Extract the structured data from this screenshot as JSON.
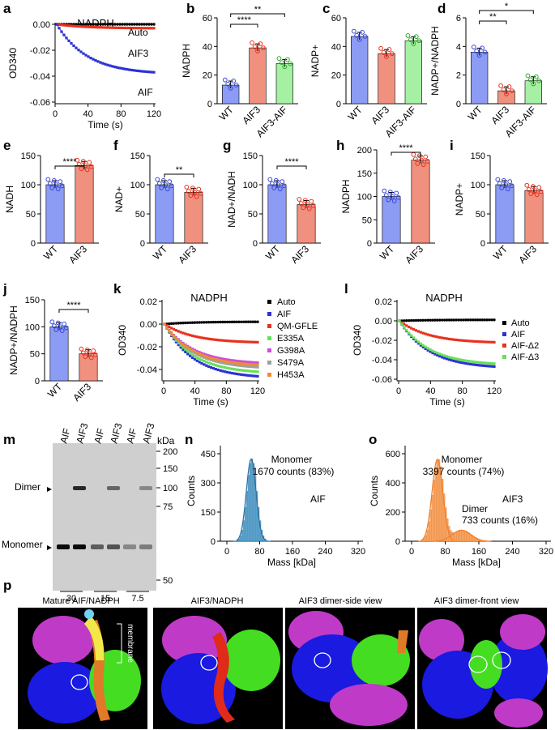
{
  "labels": {
    "a": "a",
    "b": "b",
    "c": "c",
    "d": "d",
    "e": "e",
    "f": "f",
    "g": "g",
    "h": "h",
    "i": "i",
    "j": "j",
    "k": "k",
    "l": "l",
    "m": "m",
    "n": "n",
    "o": "o",
    "p": "p"
  },
  "a": {
    "title": "NADPH",
    "ylabel": "OD340",
    "xlabel": "Time (s)",
    "yticks": [
      "0.00",
      "-0.02",
      "-0.04",
      "-0.06"
    ],
    "xticks": [
      "0",
      "40",
      "80",
      "120"
    ],
    "ann": {
      "auto": "Auto",
      "aif3": "AIF3",
      "aif": "AIF"
    },
    "colors": {
      "auto": "#000000",
      "aif3": "#e8321e",
      "aif": "#2d32d2"
    }
  },
  "b": {
    "ylabel": "NADPH",
    "yticks": [
      "0",
      "20",
      "40",
      "60"
    ],
    "groups": [
      "WT",
      "AIF3",
      "AIF3-AIF"
    ],
    "sig": [
      "****",
      "**"
    ],
    "means": [
      13,
      39,
      28
    ],
    "colors": [
      "#8c9cf4",
      "#f0907e",
      "#a6f0a4"
    ]
  },
  "c": {
    "ylabel": "NADP+",
    "yticks": [
      "0",
      "20",
      "40",
      "60"
    ],
    "groups": [
      "WT",
      "AIF3",
      "AIF3-AIF"
    ],
    "means": [
      47,
      35,
      44
    ]
  },
  "d": {
    "ylabel": "NADP+/NADPH",
    "yticks": [
      "0",
      "2",
      "4",
      "6"
    ],
    "groups": [
      "WT",
      "AIF3",
      "AIF3-AIF"
    ],
    "sig": [
      "**",
      "*"
    ],
    "means": [
      3.6,
      0.9,
      1.6
    ]
  },
  "e": {
    "ylabel": "NADH",
    "yticks": [
      "0",
      "50",
      "100",
      "150"
    ],
    "groups": [
      "WT",
      "AIF3"
    ],
    "sig": "****",
    "means": [
      100,
      133
    ]
  },
  "f": {
    "ylabel": "NAD+",
    "yticks": [
      "0",
      "50",
      "100",
      "150"
    ],
    "groups": [
      "WT",
      "AIF3"
    ],
    "sig": "**",
    "means": [
      100,
      87
    ]
  },
  "g": {
    "ylabel": "NAD+/NADH",
    "yticks": [
      "0",
      "50",
      "100",
      "150"
    ],
    "groups": [
      "WT",
      "AIF3"
    ],
    "sig": "****",
    "means": [
      100,
      66
    ]
  },
  "h": {
    "ylabel": "NADPH",
    "yticks": [
      "0",
      "50",
      "100",
      "150",
      "200"
    ],
    "groups": [
      "WT",
      "AIF3"
    ],
    "sig": "****",
    "means": [
      100,
      178
    ]
  },
  "i": {
    "ylabel": "NADP+",
    "yticks": [
      "0",
      "50",
      "100",
      "150"
    ],
    "groups": [
      "WT",
      "AIF3"
    ],
    "means": [
      100,
      90
    ]
  },
  "j": {
    "ylabel": "NADP+/NADPH",
    "yticks": [
      "0",
      "50",
      "100",
      "150"
    ],
    "groups": [
      "WT",
      "AIF3"
    ],
    "sig": "****",
    "means": [
      100,
      50
    ]
  },
  "k": {
    "title": "NADPH",
    "ylabel": "OD340",
    "xlabel": "Time (s)",
    "yticks": [
      "0.02",
      "0.00",
      "-0.02",
      "-0.04"
    ],
    "xticks": [
      "0",
      "40",
      "80",
      "120"
    ],
    "legend": [
      {
        "name": "Auto",
        "color": "#000000",
        "end": 0.002
      },
      {
        "name": "AIF",
        "color": "#2d32d2",
        "end": -0.046
      },
      {
        "name": "QM-GFLE",
        "color": "#e8321e",
        "end": -0.016
      },
      {
        "name": "E335A",
        "color": "#66e05a",
        "end": -0.042
      },
      {
        "name": "G398A",
        "color": "#c94fd8",
        "end": -0.034
      },
      {
        "name": "S479A",
        "color": "#9ca09c",
        "end": -0.038
      },
      {
        "name": "H453A",
        "color": "#f08c32",
        "end": -0.036
      }
    ]
  },
  "l": {
    "title": "NADPH",
    "ylabel": "OD340",
    "xlabel": "Time (s)",
    "yticks": [
      "0.02",
      "0.00",
      "-0.02",
      "-0.04",
      "-0.06"
    ],
    "xticks": [
      "0",
      "40",
      "80",
      "120"
    ],
    "legend": [
      {
        "name": "Auto",
        "color": "#000000",
        "end": 0.001
      },
      {
        "name": "AIF",
        "color": "#2d32d2",
        "end": -0.047
      },
      {
        "name": "AIF-Δ2",
        "color": "#e8321e",
        "end": -0.022
      },
      {
        "name": "AIF-Δ3",
        "color": "#66e05a",
        "end": -0.044
      }
    ]
  },
  "m": {
    "lanes": [
      "AIF",
      "AIF3",
      "AIF",
      "AIF3",
      "AIF",
      "AIF3"
    ],
    "kda": "kDa",
    "markers": [
      "200",
      "150",
      "100",
      "75",
      "50"
    ],
    "dimer": "Dimer",
    "monomer": "Monomer",
    "amounts": [
      "30",
      "15",
      "7.5"
    ]
  },
  "n": {
    "xlabel": "Mass [kDa]",
    "ylabel": "Counts",
    "yticks": [
      "450",
      "300",
      "150",
      "0"
    ],
    "xticks": [
      "0",
      "80",
      "160",
      "240",
      "320"
    ],
    "peak": "Monomer",
    "count": "1670 counts (83%)",
    "name": "AIF",
    "color": "#2a6f9e",
    "fill": "#6aaed6"
  },
  "o": {
    "xlabel": "Mass [kDa]",
    "ylabel": "Counts",
    "yticks": [
      "600",
      "400",
      "200",
      "0"
    ],
    "xticks": [
      "0",
      "80",
      "160",
      "240",
      "320"
    ],
    "peak1": "Monomer",
    "count1": "3397 counts (74%)",
    "peak2": "Dimer",
    "count2": "733 counts (16%)",
    "name": "AIF3",
    "color": "#f07f2a",
    "fill": "#f4a86a"
  },
  "p": {
    "titles": [
      "Mature AIF/NADPH",
      "AIF3/NADPH",
      "AIF3 dimer-side view",
      "AIF3 dimer-front view"
    ],
    "membrane": "membrane"
  }
}
